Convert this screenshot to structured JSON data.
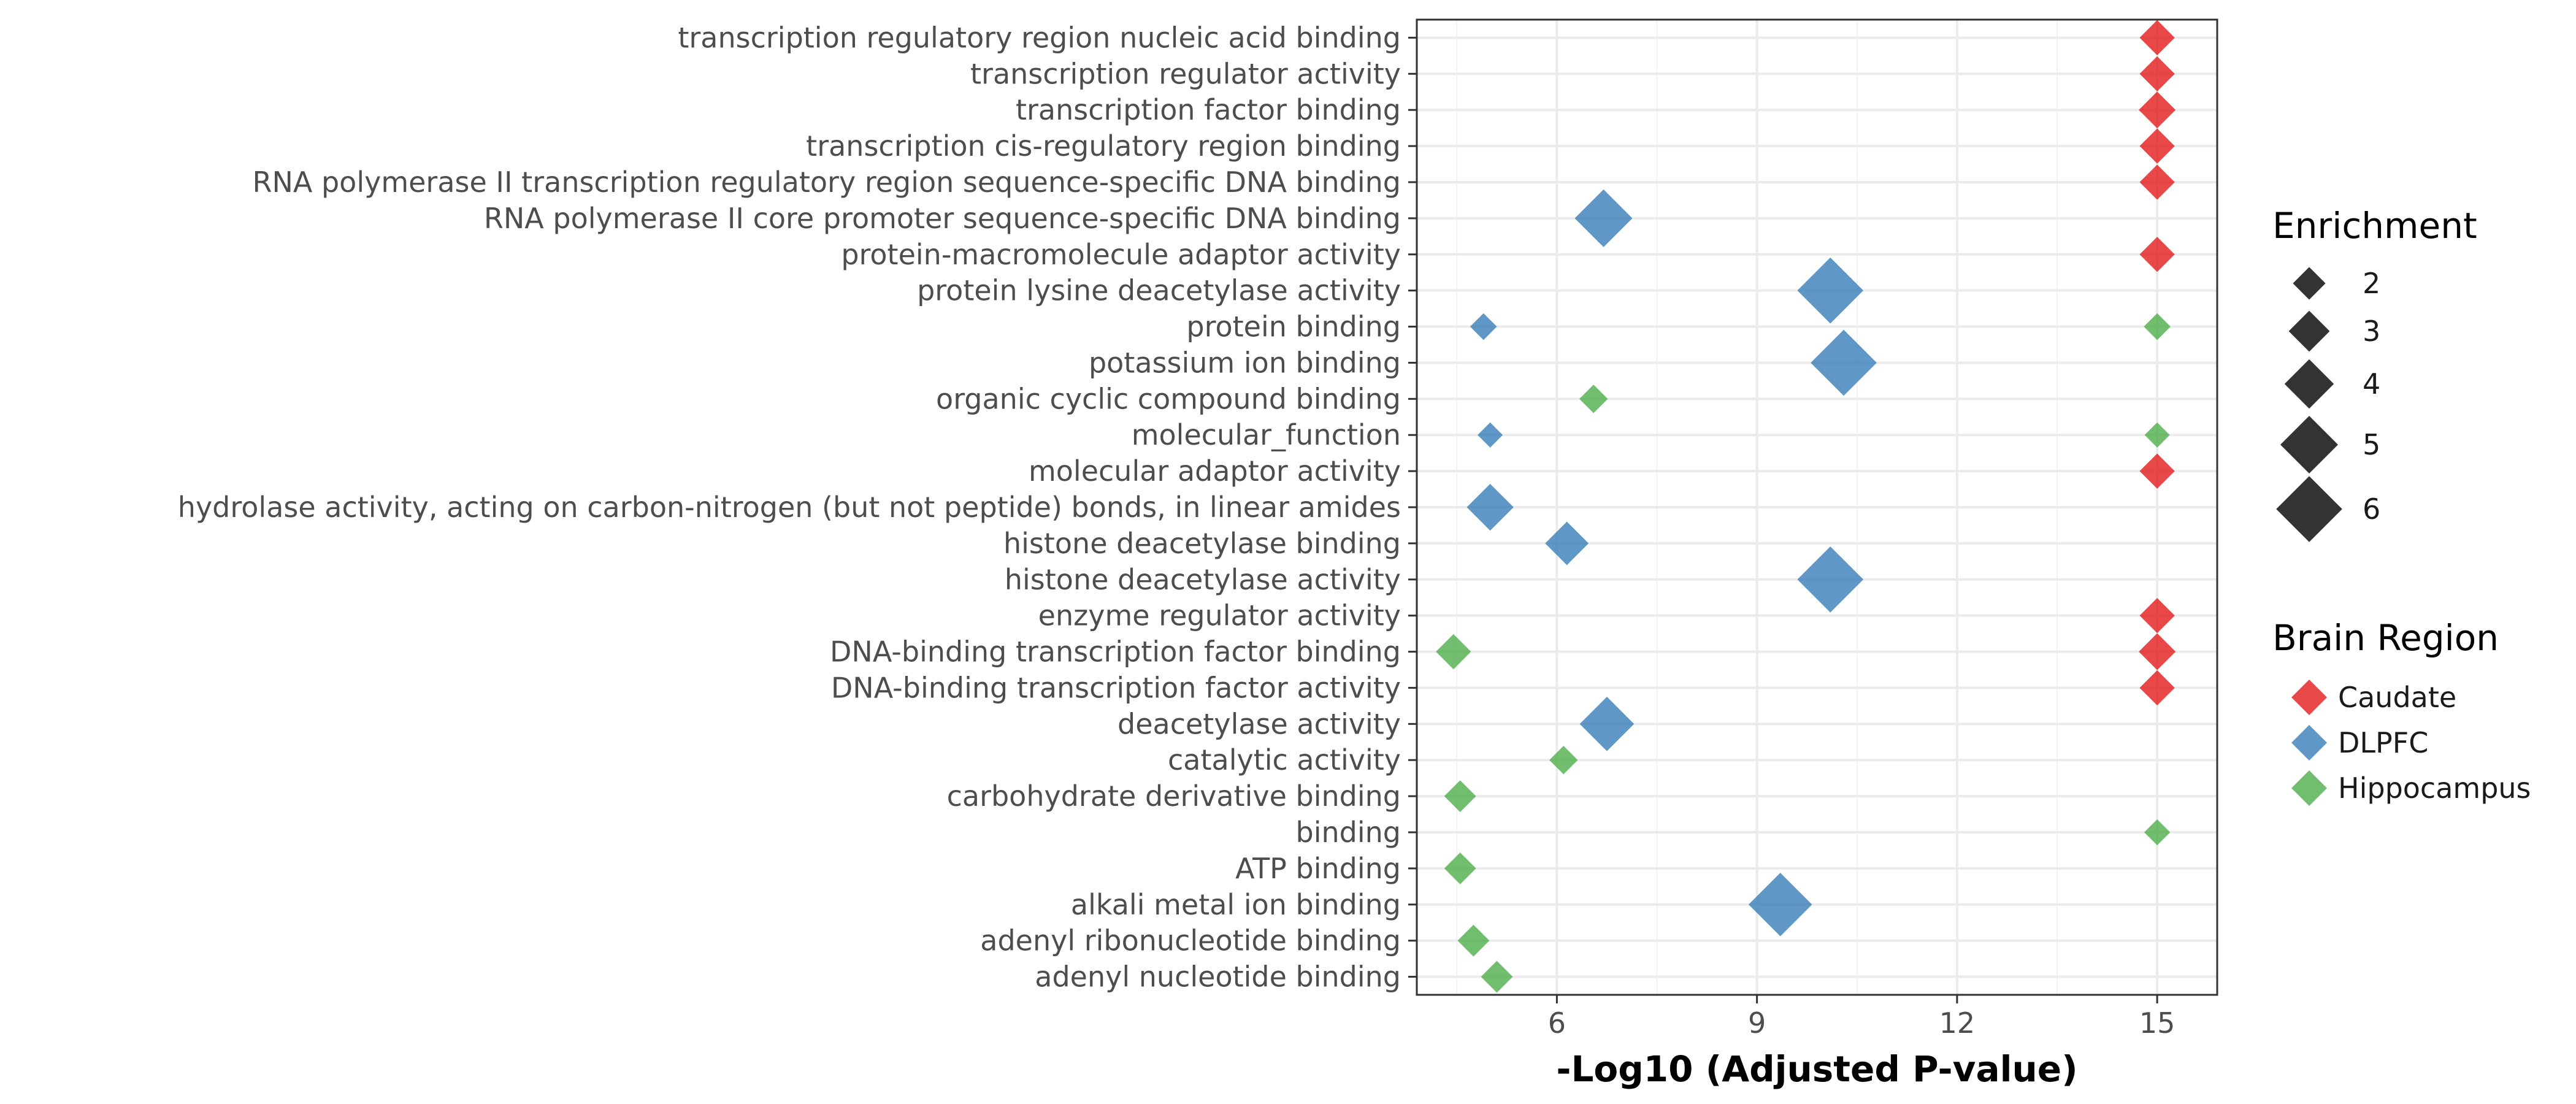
{
  "chart_data": {
    "type": "scatter",
    "title": "",
    "xlabel": "-Log10 (Adjusted P-value)",
    "ylabel": "",
    "xlim": [
      3.9,
      15.9
    ],
    "xticks": [
      6,
      9,
      12,
      15
    ],
    "grid": true,
    "categories": [
      "transcription regulatory region nucleic acid binding",
      "transcription regulator activity",
      "transcription factor binding",
      "transcription cis-regulatory region binding",
      "RNA polymerase II transcription regulatory region sequence-specific DNA binding",
      "RNA polymerase II core promoter sequence-specific DNA binding",
      "protein-macromolecule adaptor activity",
      "protein lysine deacetylase activity",
      "protein binding",
      "potassium ion binding",
      "organic cyclic compound binding",
      "molecular_function",
      "molecular adaptor activity",
      "hydrolase activity, acting on carbon-nitrogen (but not peptide) bonds, in linear amides",
      "histone deacetylase binding",
      "histone deacetylase activity",
      "enzyme regulator activity",
      "DNA-binding transcription factor binding",
      "DNA-binding transcription factor activity",
      "deacetylase activity",
      "catalytic activity",
      "carbohydrate derivative binding",
      "binding",
      "ATP binding",
      "alkali metal ion binding",
      "adenyl ribonucleotide binding",
      "adenyl nucleotide binding"
    ],
    "series": [
      {
        "name": "Caudate",
        "color": "#E41A1C",
        "points": [
          {
            "category": "transcription regulatory region nucleic acid binding",
            "x": 15,
            "enrichment": 2.3
          },
          {
            "category": "transcription regulator activity",
            "x": 15,
            "enrichment": 2.3
          },
          {
            "category": "transcription factor binding",
            "x": 15,
            "enrichment": 2.5
          },
          {
            "category": "transcription cis-regulatory region binding",
            "x": 15,
            "enrichment": 2.3
          },
          {
            "category": "RNA polymerase II transcription regulatory region sequence-specific DNA binding",
            "x": 15,
            "enrichment": 2.3
          },
          {
            "category": "protein-macromolecule adaptor activity",
            "x": 15,
            "enrichment": 2.3
          },
          {
            "category": "molecular adaptor activity",
            "x": 15,
            "enrichment": 2.3
          },
          {
            "category": "enzyme regulator activity",
            "x": 15,
            "enrichment": 2.3
          },
          {
            "category": "DNA-binding transcription factor binding",
            "x": 15,
            "enrichment": 2.5
          },
          {
            "category": "DNA-binding transcription factor activity",
            "x": 15,
            "enrichment": 2.3
          }
        ]
      },
      {
        "name": "DLPFC",
        "color": "#377EB8",
        "points": [
          {
            "category": "RNA polymerase II core promoter sequence-specific DNA binding",
            "x": 6.7,
            "enrichment": 5.0
          },
          {
            "category": "protein lysine deacetylase activity",
            "x": 10.1,
            "enrichment": 6.0
          },
          {
            "category": "protein binding",
            "x": 4.9,
            "enrichment": 1.3
          },
          {
            "category": "potassium ion binding",
            "x": 10.3,
            "enrichment": 6.0
          },
          {
            "category": "molecular_function",
            "x": 5.0,
            "enrichment": 1.1
          },
          {
            "category": "hydrolase activity, acting on carbon-nitrogen (but not peptide) bonds, in linear amides",
            "x": 5.0,
            "enrichment": 3.7
          },
          {
            "category": "histone deacetylase binding",
            "x": 6.15,
            "enrichment": 3.3
          },
          {
            "category": "histone deacetylase activity",
            "x": 10.1,
            "enrichment": 6.0
          },
          {
            "category": "deacetylase activity",
            "x": 6.75,
            "enrichment": 4.6
          },
          {
            "category": "alkali metal ion binding",
            "x": 9.35,
            "enrichment": 5.7
          }
        ]
      },
      {
        "name": "Hippocampus",
        "color": "#4DAF4A",
        "points": [
          {
            "category": "protein binding",
            "x": 15,
            "enrichment": 1.3
          },
          {
            "category": "organic cyclic compound binding",
            "x": 6.55,
            "enrichment": 1.5
          },
          {
            "category": "molecular_function",
            "x": 15,
            "enrichment": 1.1
          },
          {
            "category": "DNA-binding transcription factor binding",
            "x": 4.45,
            "enrichment": 2.3
          },
          {
            "category": "catalytic activity",
            "x": 6.1,
            "enrichment": 1.5
          },
          {
            "category": "carbohydrate derivative binding",
            "x": 4.55,
            "enrichment": 1.9
          },
          {
            "category": "binding",
            "x": 15,
            "enrichment": 1.2
          },
          {
            "category": "ATP binding",
            "x": 4.55,
            "enrichment": 1.9
          },
          {
            "category": "adenyl ribonucleotide binding",
            "x": 4.75,
            "enrichment": 1.9
          },
          {
            "category": "adenyl nucleotide binding",
            "x": 5.1,
            "enrichment": 1.9
          }
        ]
      }
    ],
    "legend_position": "right",
    "size_legend": {
      "title": "Enrichment",
      "values": [
        2,
        3,
        4,
        5,
        6
      ],
      "labels": [
        "2",
        "3",
        "4",
        "5",
        "6"
      ]
    },
    "color_legend": {
      "title": "Brain Region",
      "items": [
        {
          "label": "Caudate",
          "color": "#E41A1C"
        },
        {
          "label": "DLPFC",
          "color": "#377EB8"
        },
        {
          "label": "Hippocampus",
          "color": "#4DAF4A"
        }
      ]
    }
  }
}
